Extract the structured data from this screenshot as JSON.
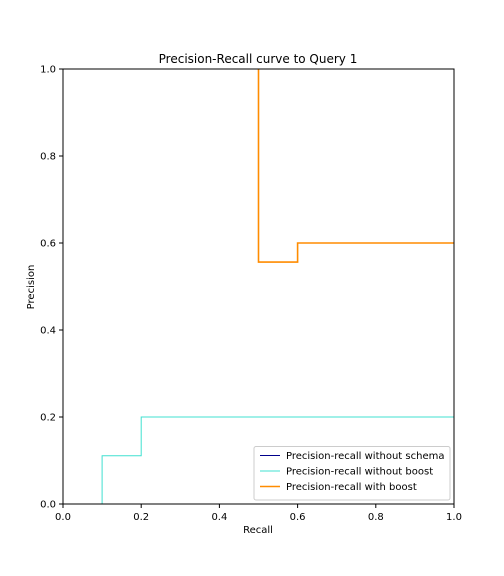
{
  "chart_data": {
    "type": "line",
    "title": "Precision-Recall curve to Query 1",
    "xlabel": "Recall",
    "ylabel": "Precision",
    "xlim": [
      0.0,
      1.0
    ],
    "ylim": [
      0.0,
      1.0
    ],
    "xticks": [
      "0.0",
      "0.2",
      "0.4",
      "0.6",
      "0.8",
      "1.0"
    ],
    "yticks": [
      "0.0",
      "0.2",
      "0.4",
      "0.6",
      "0.8",
      "1.0"
    ],
    "grid": false,
    "legend_position": "lower-right",
    "series": [
      {
        "name": "Precision-recall without schema",
        "color": "#00008b",
        "step": "post",
        "points": []
      },
      {
        "name": "Precision-recall without boost",
        "color": "#40e0d0",
        "step": "post",
        "points": [
          [
            0.1,
            0.0
          ],
          [
            0.1,
            0.111
          ],
          [
            0.2,
            0.111
          ],
          [
            0.2,
            0.2
          ],
          [
            1.0,
            0.2
          ]
        ]
      },
      {
        "name": "Precision-recall with boost",
        "color": "#ff8c00",
        "step": "post",
        "points": [
          [
            0.5,
            1.0
          ],
          [
            0.5,
            0.556
          ],
          [
            0.6,
            0.556
          ],
          [
            0.6,
            0.6
          ],
          [
            1.0,
            0.6
          ]
        ]
      }
    ]
  }
}
